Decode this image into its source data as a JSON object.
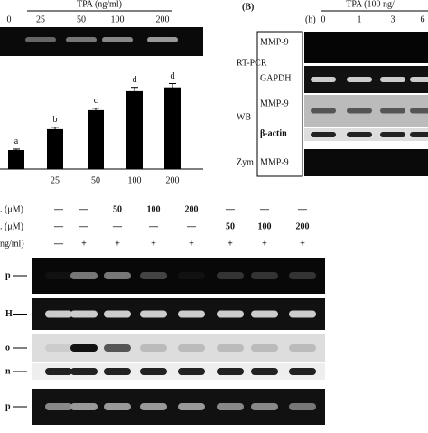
{
  "panel_a": {
    "gel_header": "TPA (ng/ml)",
    "lanes": [
      "0",
      "25",
      "50",
      "100",
      "200"
    ]
  },
  "chart_data": {
    "type": "bar",
    "categories": [
      null,
      "25",
      "50",
      "100",
      "200"
    ],
    "values": [
      1,
      2.1,
      3.1,
      4.1,
      4.3
    ],
    "errors": [
      0.05,
      0.1,
      0.1,
      0.2,
      0.2
    ],
    "annotations": [
      "a",
      "b",
      "c",
      "d",
      "d"
    ],
    "ylim": [
      0,
      4.5
    ],
    "color": "#000000"
  },
  "panel_b": {
    "label": "(B)",
    "header": "TPA (100 ng/",
    "time_unit": "(h)",
    "lanes": [
      "0",
      "1",
      "3",
      "6"
    ],
    "groups": [
      {
        "name": "RT-PCR",
        "rows": [
          "MMP-9",
          "GAPDH"
        ]
      },
      {
        "name": "WB",
        "rows": [
          "MMP-9",
          "β-actin"
        ]
      },
      {
        "name": "Zym",
        "rows": [
          "MMP-9"
        ]
      }
    ]
  },
  "panel_c": {
    "row_labels": [
      ". (μM)",
      ". (μM)",
      "ng/ml)"
    ],
    "rows": [
      [
        "—",
        "—",
        "50",
        "100",
        "200",
        "—",
        "—",
        "—"
      ],
      [
        "—",
        "—",
        "—",
        "—",
        "—",
        "50",
        "100",
        "200"
      ],
      [
        "—",
        "+",
        "+",
        "+",
        "+",
        "+",
        "+",
        "+"
      ]
    ],
    "gel_labels": [
      "p",
      "H",
      "o",
      "n",
      "p"
    ]
  }
}
